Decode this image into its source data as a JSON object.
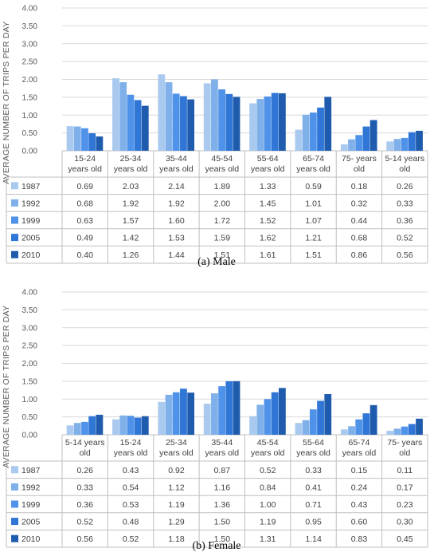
{
  "chart_data": [
    {
      "type": "bar",
      "caption": "(a) Male",
      "ylabel": "AVERAGE NUMBER OF TRIPS PER DAY",
      "ylim": [
        0,
        4
      ],
      "yticks": [
        "0.00",
        "0.50",
        "1.00",
        "1.50",
        "2.00",
        "2.50",
        "3.00",
        "3.50",
        "4.00"
      ],
      "grid": true,
      "legend": "data table below chart",
      "categories": [
        [
          "15-24",
          "years old"
        ],
        [
          "25-34",
          "years old"
        ],
        [
          "35-44",
          "years old"
        ],
        [
          "45-54",
          "years old"
        ],
        [
          "55-64",
          "years old"
        ],
        [
          "65-74",
          "years old"
        ],
        [
          "75- years",
          "old"
        ],
        [
          "5-14 years",
          "old"
        ]
      ],
      "series": [
        {
          "name": "1987",
          "color": "#a9c9ee",
          "values": [
            0.69,
            2.03,
            2.14,
            1.89,
            1.33,
            0.59,
            0.18,
            0.26
          ]
        },
        {
          "name": "1992",
          "color": "#7fb0ea",
          "values": [
            0.68,
            1.92,
            1.92,
            2.0,
            1.45,
            1.01,
            0.32,
            0.33
          ]
        },
        {
          "name": "1999",
          "color": "#4f92ea",
          "values": [
            0.63,
            1.57,
            1.6,
            1.72,
            1.52,
            1.07,
            0.44,
            0.36
          ]
        },
        {
          "name": "2005",
          "color": "#2f76d6",
          "values": [
            0.49,
            1.42,
            1.53,
            1.59,
            1.62,
            1.21,
            0.68,
            0.52
          ]
        },
        {
          "name": "2010",
          "color": "#1f5cad",
          "values": [
            0.4,
            1.26,
            1.44,
            1.51,
            1.61,
            1.51,
            0.86,
            0.56
          ]
        }
      ],
      "table": [
        [
          "0.69",
          "2.03",
          "2.14",
          "1.89",
          "1.33",
          "0.59",
          "0.18",
          "0.26"
        ],
        [
          "0.68",
          "1.92",
          "1.92",
          "2.00",
          "1.45",
          "1.01",
          "0.32",
          "0.33"
        ],
        [
          "0.63",
          "1.57",
          "1.60",
          "1.72",
          "1.52",
          "1.07",
          "0.44",
          "0.36"
        ],
        [
          "0.49",
          "1.42",
          "1.53",
          "1.59",
          "1.62",
          "1.21",
          "0.68",
          "0.52"
        ],
        [
          "0.40",
          "1.26",
          "1.44",
          "1.51",
          "1.61",
          "1.51",
          "0.86",
          "0.56"
        ]
      ]
    },
    {
      "type": "bar",
      "caption": "(b) Female",
      "ylabel": "AVERAGE NUMBER OF TRIPS PER DAY",
      "ylim": [
        0,
        4
      ],
      "yticks": [
        "0.00",
        "0.50",
        "1.00",
        "1.50",
        "2.00",
        "2.50",
        "3.00",
        "3.50",
        "4.00"
      ],
      "grid": true,
      "legend": "data table below chart",
      "categories": [
        [
          "5-14 years",
          "old"
        ],
        [
          "15-24",
          "years old"
        ],
        [
          "25-34",
          "years old"
        ],
        [
          "35-44",
          "years old"
        ],
        [
          "45-54",
          "years old"
        ],
        [
          "55-64",
          "years old"
        ],
        [
          "65-74",
          "years old"
        ],
        [
          "75- years",
          "old"
        ]
      ],
      "series": [
        {
          "name": "1987",
          "color": "#a9c9ee",
          "values": [
            0.26,
            0.43,
            0.92,
            0.87,
            0.52,
            0.33,
            0.15,
            0.11
          ]
        },
        {
          "name": "1992",
          "color": "#7fb0ea",
          "values": [
            0.33,
            0.54,
            1.12,
            1.16,
            0.84,
            0.41,
            0.24,
            0.17
          ]
        },
        {
          "name": "1999",
          "color": "#4f92ea",
          "values": [
            0.36,
            0.53,
            1.19,
            1.36,
            1.0,
            0.71,
            0.43,
            0.23
          ]
        },
        {
          "name": "2005",
          "color": "#2f76d6",
          "values": [
            0.52,
            0.48,
            1.29,
            1.5,
            1.19,
            0.95,
            0.6,
            0.3
          ]
        },
        {
          "name": "2010",
          "color": "#1f5cad",
          "values": [
            0.56,
            0.52,
            1.18,
            1.5,
            1.31,
            1.14,
            0.83,
            0.45
          ]
        }
      ],
      "table": [
        [
          "0.26",
          "0.43",
          "0.92",
          "0.87",
          "0.52",
          "0.33",
          "0.15",
          "0.11"
        ],
        [
          "0.33",
          "0.54",
          "1.12",
          "1.16",
          "0.84",
          "0.41",
          "0.24",
          "0.17"
        ],
        [
          "0.36",
          "0.53",
          "1.19",
          "1.36",
          "1.00",
          "0.71",
          "0.43",
          "0.23"
        ],
        [
          "0.52",
          "0.48",
          "1.29",
          "1.50",
          "1.19",
          "0.95",
          "0.60",
          "0.30"
        ],
        [
          "0.56",
          "0.52",
          "1.18",
          "1.50",
          "1.31",
          "1.14",
          "0.83",
          "0.45"
        ]
      ]
    }
  ]
}
